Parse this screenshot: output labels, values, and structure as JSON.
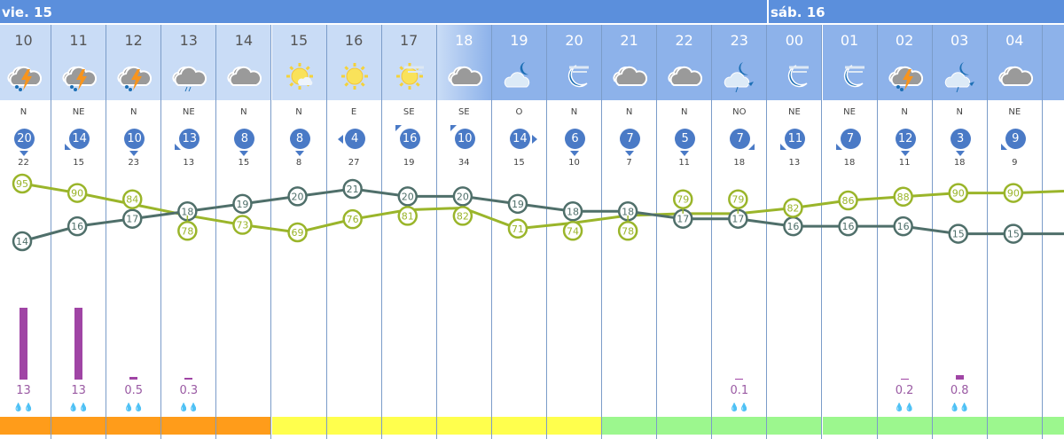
{
  "days": [
    {
      "label": "vie. 15"
    },
    {
      "label": "sáb. 16"
    }
  ],
  "colors": {
    "header": "#5b8fdc",
    "temp_line": "#4f6f6a",
    "humidity_line": "#9ab52a",
    "rain_bar": "#a045a5",
    "strip_orange": "#ff9c1a",
    "strip_yellow": "#ffff4d",
    "strip_green": "#9cf78e"
  },
  "hours": [
    {
      "hour": "10",
      "icon": "storm-rain",
      "dir": "N",
      "wind": "20",
      "gust": "22",
      "rain": "13",
      "rain_mm": 13,
      "strip": "orange",
      "tone": "day"
    },
    {
      "hour": "11",
      "icon": "storm-rain",
      "dir": "NE",
      "wind": "14",
      "gust": "15",
      "rain": "13",
      "rain_mm": 13,
      "strip": "orange",
      "tone": "day"
    },
    {
      "hour": "12",
      "icon": "storm-rain",
      "dir": "N",
      "wind": "10",
      "gust": "23",
      "rain": "0.5",
      "rain_mm": 0.5,
      "strip": "orange",
      "tone": "day"
    },
    {
      "hour": "13",
      "icon": "cloud-rain",
      "dir": "NE",
      "wind": "13",
      "gust": "13",
      "rain": "0.3",
      "rain_mm": 0.3,
      "strip": "orange",
      "tone": "day"
    },
    {
      "hour": "14",
      "icon": "cloud",
      "dir": "N",
      "wind": "8",
      "gust": "15",
      "rain": "",
      "rain_mm": 0,
      "strip": "orange",
      "tone": "day"
    },
    {
      "hour": "15",
      "icon": "sun-cloud",
      "dir": "N",
      "wind": "8",
      "gust": "8",
      "rain": "",
      "rain_mm": 0,
      "strip": "yellow",
      "tone": "day"
    },
    {
      "hour": "16",
      "icon": "sun",
      "dir": "E",
      "wind": "4",
      "gust": "27",
      "rain": "",
      "rain_mm": 0,
      "strip": "yellow",
      "tone": "day"
    },
    {
      "hour": "17",
      "icon": "sun-haze",
      "dir": "SE",
      "wind": "16",
      "gust": "19",
      "rain": "",
      "rain_mm": 0,
      "strip": "yellow",
      "tone": "day"
    },
    {
      "hour": "18",
      "icon": "cloud",
      "dir": "SE",
      "wind": "10",
      "gust": "34",
      "rain": "",
      "rain_mm": 0,
      "strip": "yellow",
      "tone": "dusk"
    },
    {
      "hour": "19",
      "icon": "moon-cloud",
      "dir": "O",
      "wind": "14",
      "gust": "15",
      "rain": "",
      "rain_mm": 0,
      "strip": "yellow",
      "tone": "night"
    },
    {
      "hour": "20",
      "icon": "moon-haze",
      "dir": "N",
      "wind": "6",
      "gust": "10",
      "rain": "",
      "rain_mm": 0,
      "strip": "yellow",
      "tone": "night"
    },
    {
      "hour": "21",
      "icon": "cloud",
      "dir": "N",
      "wind": "7",
      "gust": "7",
      "rain": "",
      "rain_mm": 0,
      "strip": "green",
      "tone": "night"
    },
    {
      "hour": "22",
      "icon": "cloud",
      "dir": "N",
      "wind": "5",
      "gust": "11",
      "rain": "",
      "rain_mm": 0,
      "strip": "green",
      "tone": "night"
    },
    {
      "hour": "23",
      "icon": "moon-cloud-rain",
      "dir": "NO",
      "wind": "7",
      "gust": "18",
      "rain": "0.1",
      "rain_mm": 0.1,
      "strip": "green",
      "tone": "night"
    },
    {
      "hour": "00",
      "icon": "moon-haze",
      "dir": "NE",
      "wind": "11",
      "gust": "13",
      "rain": "",
      "rain_mm": 0,
      "strip": "green",
      "tone": "night"
    },
    {
      "hour": "01",
      "icon": "moon-haze",
      "dir": "NE",
      "wind": "7",
      "gust": "18",
      "rain": "",
      "rain_mm": 0,
      "strip": "green",
      "tone": "night"
    },
    {
      "hour": "02",
      "icon": "storm-rain",
      "dir": "N",
      "wind": "12",
      "gust": "11",
      "rain": "0.2",
      "rain_mm": 0.2,
      "strip": "green",
      "tone": "night"
    },
    {
      "hour": "03",
      "icon": "moon-cloud-rain",
      "dir": "N",
      "wind": "3",
      "gust": "18",
      "rain": "0.8",
      "rain_mm": 0.8,
      "strip": "green",
      "tone": "night"
    },
    {
      "hour": "04",
      "icon": "cloud",
      "dir": "NE",
      "wind": "9",
      "gust": "9",
      "rain": "",
      "rain_mm": 0,
      "strip": "green",
      "tone": "night"
    }
  ],
  "chart_data": {
    "type": "line",
    "categories": [
      "10",
      "11",
      "12",
      "13",
      "14",
      "15",
      "16",
      "17",
      "18",
      "19",
      "20",
      "21",
      "22",
      "23",
      "00",
      "01",
      "02",
      "03",
      "04"
    ],
    "series": [
      {
        "values": [
          14,
          16,
          17,
          18,
          19,
          20,
          21,
          20,
          20,
          19,
          18,
          18,
          17,
          17,
          16,
          16,
          16,
          15,
          15
        ]
      },
      {
        "values": [
          95,
          90,
          84,
          78,
          73,
          69,
          76,
          81,
          82,
          71,
          74,
          78,
          79,
          79,
          82,
          86,
          88,
          90,
          90
        ]
      }
    ]
  }
}
